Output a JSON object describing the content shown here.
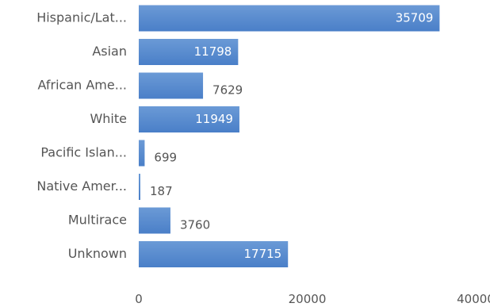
{
  "chart_data": {
    "type": "bar",
    "orientation": "horizontal",
    "categories": [
      "Hispanic/Lat...",
      "Asian",
      "African Ame...",
      "White",
      "Pacific Islan...",
      "Native Amer...",
      "Multirace",
      "Unknown"
    ],
    "values": [
      35709,
      11798,
      7629,
      11949,
      699,
      187,
      3760,
      17715
    ],
    "xlim": [
      0,
      40000
    ],
    "x_ticks": [
      "0",
      "20000",
      "40000"
    ],
    "grid": false,
    "legend": "none",
    "colors": {
      "bar": "#4a7fc8",
      "bar_light": "#6b9ad6",
      "text": "#555555",
      "inside_text": "#ffffff"
    }
  }
}
